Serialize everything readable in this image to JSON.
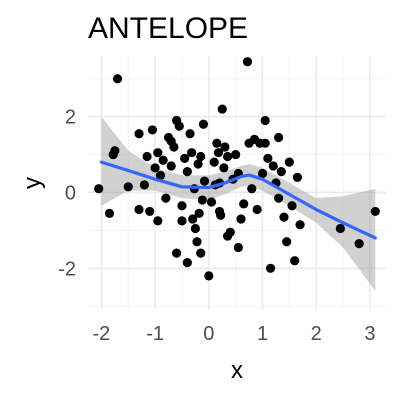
{
  "chart_data": {
    "type": "scatter",
    "title": "ANTELOPE",
    "xlabel": "x",
    "ylabel": "y",
    "xlim": [
      -2.25,
      3.3
    ],
    "ylim": [
      -3.1,
      3.6
    ],
    "x_ticks": [
      -2,
      -1,
      0,
      1,
      2,
      3
    ],
    "x_tick_labels": [
      "-2",
      "-1",
      "0",
      "1",
      "2",
      "3"
    ],
    "y_ticks": [
      -2,
      0,
      2
    ],
    "y_tick_labels": [
      "-2",
      "0",
      "2"
    ],
    "grid": true,
    "legend": "none",
    "point_color": "#000000",
    "line_color": "#3366ff",
    "band_color": "#999999",
    "points": [
      [
        -1.7,
        3.0
      ],
      [
        -2.05,
        0.1
      ],
      [
        -1.85,
        -0.55
      ],
      [
        -1.78,
        1.0
      ],
      [
        -1.75,
        1.1
      ],
      [
        -1.5,
        0.15
      ],
      [
        -1.3,
        1.55
      ],
      [
        -1.2,
        0.2
      ],
      [
        -1.1,
        -0.5
      ],
      [
        -1.05,
        1.65
      ],
      [
        -1.0,
        0.65
      ],
      [
        -0.95,
        1.05
      ],
      [
        -0.9,
        0.45
      ],
      [
        -0.85,
        0.85
      ],
      [
        -0.8,
        -0.15
      ],
      [
        -0.75,
        1.45
      ],
      [
        -0.7,
        0.7
      ],
      [
        -0.65,
        1.2
      ],
      [
        -0.6,
        1.9
      ],
      [
        -0.55,
        1.75
      ],
      [
        -0.5,
        -0.35
      ],
      [
        -0.45,
        0.9
      ],
      [
        -0.4,
        0.55
      ],
      [
        -0.35,
        1.55
      ],
      [
        -0.32,
        1.05
      ],
      [
        -0.3,
        -0.7
      ],
      [
        -0.27,
        0.1
      ],
      [
        -0.25,
        -0.95
      ],
      [
        -0.22,
        -1.3
      ],
      [
        -0.2,
        0.75
      ],
      [
        -0.18,
        -0.55
      ],
      [
        -0.15,
        0.95
      ],
      [
        -0.12,
        -0.2
      ],
      [
        -0.1,
        1.8
      ],
      [
        -0.08,
        0.3
      ],
      [
        0.0,
        -2.2
      ],
      [
        0.05,
        -0.25
      ],
      [
        0.1,
        0.8
      ],
      [
        0.12,
        0.2
      ],
      [
        0.15,
        1.3
      ],
      [
        0.18,
        1.05
      ],
      [
        0.2,
        -0.5
      ],
      [
        0.22,
        -0.6
      ],
      [
        0.25,
        2.2
      ],
      [
        0.28,
        0.65
      ],
      [
        0.3,
        1.2
      ],
      [
        0.35,
        0.95
      ],
      [
        0.4,
        -1.05
      ],
      [
        0.45,
        0.35
      ],
      [
        0.5,
        1.0
      ],
      [
        0.55,
        -1.45
      ],
      [
        0.6,
        -0.7
      ],
      [
        0.65,
        -0.3
      ],
      [
        0.72,
        3.45
      ],
      [
        0.75,
        1.3
      ],
      [
        0.8,
        0.1
      ],
      [
        0.85,
        1.4
      ],
      [
        0.9,
        -0.45
      ],
      [
        0.95,
        1.3
      ],
      [
        1.0,
        0.5
      ],
      [
        1.05,
        1.9
      ],
      [
        1.1,
        0.9
      ],
      [
        1.15,
        -2.0
      ],
      [
        1.2,
        0.7
      ],
      [
        1.25,
        0.25
      ],
      [
        1.3,
        -0.15
      ],
      [
        1.35,
        0.55
      ],
      [
        1.4,
        -0.65
      ],
      [
        1.45,
        -1.3
      ],
      [
        1.5,
        0.8
      ],
      [
        1.55,
        -0.35
      ],
      [
        1.6,
        -1.8
      ],
      [
        1.65,
        0.4
      ],
      [
        1.7,
        -0.85
      ],
      [
        -1.3,
        -0.45
      ],
      [
        -0.95,
        -0.75
      ],
      [
        -0.6,
        -1.6
      ],
      [
        -0.5,
        -0.75
      ],
      [
        -0.4,
        -1.85
      ],
      [
        -0.15,
        -1.6
      ],
      [
        0.35,
        -1.15
      ],
      [
        -1.15,
        0.95
      ],
      [
        -0.7,
        1.35
      ],
      [
        1.05,
        1.3
      ],
      [
        1.3,
        1.45
      ],
      [
        2.45,
        -0.95
      ],
      [
        2.8,
        -1.35
      ],
      [
        3.1,
        -0.5
      ],
      [
        0.2,
        0.25
      ],
      [
        0.55,
        0.5
      ]
    ],
    "smooth_line": [
      [
        -2.0,
        0.8
      ],
      [
        -1.5,
        0.58
      ],
      [
        -1.0,
        0.35
      ],
      [
        -0.5,
        0.15
      ],
      [
        0.0,
        0.13
      ],
      [
        0.3,
        0.25
      ],
      [
        0.6,
        0.42
      ],
      [
        0.75,
        0.46
      ],
      [
        1.0,
        0.35
      ],
      [
        1.5,
        -0.05
      ],
      [
        2.0,
        -0.45
      ],
      [
        2.5,
        -0.8
      ],
      [
        3.1,
        -1.2
      ]
    ],
    "band_upper": [
      [
        -2.0,
        2.0
      ],
      [
        -1.5,
        1.1
      ],
      [
        -1.0,
        0.65
      ],
      [
        -0.5,
        0.45
      ],
      [
        0.0,
        0.45
      ],
      [
        0.3,
        0.55
      ],
      [
        0.6,
        0.7
      ],
      [
        0.75,
        0.75
      ],
      [
        1.0,
        0.65
      ],
      [
        1.5,
        0.25
      ],
      [
        2.0,
        -0.15
      ],
      [
        2.5,
        -0.1
      ],
      [
        3.1,
        0.1
      ]
    ],
    "band_lower": [
      [
        -2.0,
        -0.35
      ],
      [
        -1.5,
        0.05
      ],
      [
        -1.0,
        0.05
      ],
      [
        -0.5,
        -0.15
      ],
      [
        0.0,
        -0.2
      ],
      [
        0.3,
        -0.05
      ],
      [
        0.6,
        0.15
      ],
      [
        0.75,
        0.18
      ],
      [
        1.0,
        0.05
      ],
      [
        1.5,
        -0.35
      ],
      [
        2.0,
        -0.8
      ],
      [
        2.5,
        -1.45
      ],
      [
        3.1,
        -2.6
      ]
    ]
  }
}
